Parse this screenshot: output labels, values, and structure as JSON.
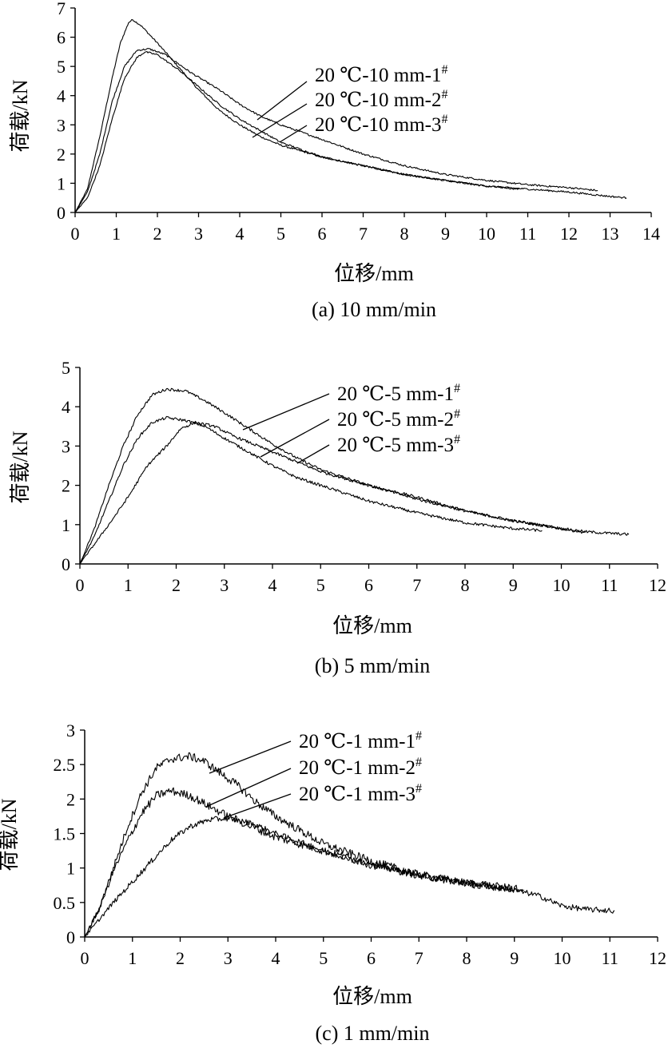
{
  "chart_data": [
    {
      "type": "line",
      "caption": "(a) 10 mm/min",
      "xlabel": "位移/mm",
      "ylabel": "荷载/kN",
      "xlim": [
        0,
        14
      ],
      "ylim": [
        0,
        7
      ],
      "xticks": [
        "0",
        "1",
        "2",
        "3",
        "4",
        "5",
        "6",
        "7",
        "8",
        "9",
        "10",
        "11",
        "12",
        "13",
        "14"
      ],
      "yticks": [
        "0",
        "1",
        "2",
        "3",
        "4",
        "5",
        "6",
        "7"
      ],
      "series": [
        {
          "name": "20 ℃-10 mm-1",
          "sup": "#",
          "noise": 0.03,
          "points": [
            [
              0,
              0
            ],
            [
              0.3,
              0.8
            ],
            [
              0.6,
              2.6
            ],
            [
              0.9,
              4.6
            ],
            [
              1.1,
              5.8
            ],
            [
              1.3,
              6.5
            ],
            [
              1.4,
              6.6
            ],
            [
              1.6,
              6.4
            ],
            [
              2,
              5.8
            ],
            [
              2.5,
              5.0
            ],
            [
              3,
              4.2
            ],
            [
              3.5,
              3.5
            ],
            [
              4,
              3.0
            ],
            [
              4.5,
              2.6
            ],
            [
              5,
              2.3
            ],
            [
              6,
              1.9
            ],
            [
              7,
              1.6
            ],
            [
              8,
              1.3
            ],
            [
              9,
              1.1
            ],
            [
              10,
              0.9
            ],
            [
              10.8,
              0.8
            ]
          ]
        },
        {
          "name": "20 ℃-10 mm-2",
          "sup": "#",
          "noise": 0.03,
          "points": [
            [
              0,
              0
            ],
            [
              0.3,
              0.7
            ],
            [
              0.6,
              2.0
            ],
            [
              0.9,
              3.8
            ],
            [
              1.2,
              5.0
            ],
            [
              1.5,
              5.55
            ],
            [
              1.8,
              5.6
            ],
            [
              2.2,
              5.4
            ],
            [
              2.8,
              4.8
            ],
            [
              3.5,
              4.2
            ],
            [
              4,
              3.7
            ],
            [
              4.5,
              3.3
            ],
            [
              5,
              3.0
            ],
            [
              6,
              2.5
            ],
            [
              7,
              2.0
            ],
            [
              8,
              1.6
            ],
            [
              9,
              1.3
            ],
            [
              10,
              1.1
            ],
            [
              11,
              0.95
            ],
            [
              12,
              0.85
            ],
            [
              12.7,
              0.75
            ]
          ]
        },
        {
          "name": "20 ℃-10 mm-3",
          "sup": "#",
          "noise": 0.03,
          "points": [
            [
              0,
              0
            ],
            [
              0.3,
              0.5
            ],
            [
              0.6,
              1.6
            ],
            [
              0.9,
              3.2
            ],
            [
              1.2,
              4.6
            ],
            [
              1.5,
              5.3
            ],
            [
              1.7,
              5.5
            ],
            [
              2,
              5.4
            ],
            [
              2.5,
              4.9
            ],
            [
              3,
              4.3
            ],
            [
              3.5,
              3.7
            ],
            [
              4,
              3.2
            ],
            [
              4.5,
              2.8
            ],
            [
              5,
              2.4
            ],
            [
              6,
              1.9
            ],
            [
              7,
              1.6
            ],
            [
              8,
              1.3
            ],
            [
              9,
              1.1
            ],
            [
              10,
              0.9
            ],
            [
              11,
              0.8
            ],
            [
              12,
              0.7
            ],
            [
              13,
              0.55
            ],
            [
              13.4,
              0.5
            ]
          ]
        }
      ]
    },
    {
      "type": "line",
      "caption": "(b) 5 mm/min",
      "xlabel": "位移/mm",
      "ylabel": "荷载/kN",
      "xlim": [
        0,
        12
      ],
      "ylim": [
        0,
        5
      ],
      "xticks": [
        "0",
        "1",
        "2",
        "3",
        "4",
        "5",
        "6",
        "7",
        "8",
        "9",
        "10",
        "11",
        "12"
      ],
      "yticks": [
        "0",
        "1",
        "2",
        "3",
        "4",
        "5"
      ],
      "series": [
        {
          "name": "20 ℃-5 mm-1",
          "sup": "#",
          "noise": 0.035,
          "points": [
            [
              0,
              0
            ],
            [
              0.3,
              0.9
            ],
            [
              0.6,
              2.0
            ],
            [
              0.9,
              3.0
            ],
            [
              1.2,
              3.8
            ],
            [
              1.5,
              4.3
            ],
            [
              1.8,
              4.45
            ],
            [
              2.2,
              4.4
            ],
            [
              2.6,
              4.15
            ],
            [
              3,
              3.85
            ],
            [
              3.5,
              3.45
            ],
            [
              4,
              3.05
            ],
            [
              4.5,
              2.7
            ],
            [
              5,
              2.4
            ],
            [
              6,
              2.0
            ],
            [
              7,
              1.7
            ],
            [
              8,
              1.35
            ],
            [
              9,
              1.1
            ],
            [
              10,
              0.9
            ],
            [
              10.5,
              0.8
            ]
          ]
        },
        {
          "name": "20 ℃-5 mm-2",
          "sup": "#",
          "noise": 0.035,
          "points": [
            [
              0,
              0
            ],
            [
              0.3,
              0.7
            ],
            [
              0.6,
              1.6
            ],
            [
              0.9,
              2.5
            ],
            [
              1.2,
              3.2
            ],
            [
              1.5,
              3.6
            ],
            [
              1.8,
              3.72
            ],
            [
              2.2,
              3.65
            ],
            [
              2.6,
              3.5
            ],
            [
              3,
              3.2
            ],
            [
              3.5,
              2.85
            ],
            [
              4,
              2.5
            ],
            [
              4.5,
              2.2
            ],
            [
              5,
              2.0
            ],
            [
              6,
              1.6
            ],
            [
              7,
              1.3
            ],
            [
              8,
              1.05
            ],
            [
              9,
              0.9
            ],
            [
              9.6,
              0.85
            ]
          ]
        },
        {
          "name": "20 ℃-5 mm-3",
          "sup": "#",
          "noise": 0.035,
          "points": [
            [
              0,
              0
            ],
            [
              0.3,
              0.5
            ],
            [
              0.6,
              1.0
            ],
            [
              1,
              1.7
            ],
            [
              1.4,
              2.5
            ],
            [
              1.8,
              3.0
            ],
            [
              2.1,
              3.45
            ],
            [
              2.4,
              3.6
            ],
            [
              2.8,
              3.5
            ],
            [
              3.2,
              3.25
            ],
            [
              3.6,
              3.05
            ],
            [
              4,
              2.85
            ],
            [
              4.5,
              2.6
            ],
            [
              5,
              2.35
            ],
            [
              6,
              2.0
            ],
            [
              7,
              1.65
            ],
            [
              8,
              1.35
            ],
            [
              9,
              1.1
            ],
            [
              10,
              0.9
            ],
            [
              10.5,
              0.82
            ],
            [
              11,
              0.78
            ],
            [
              11.4,
              0.75
            ]
          ]
        }
      ]
    },
    {
      "type": "line",
      "caption": "(c) 1 mm/min",
      "xlabel": "位移/mm",
      "ylabel": "荷载/kN",
      "xlim": [
        0,
        12
      ],
      "ylim": [
        0,
        3
      ],
      "xticks": [
        "0",
        "1",
        "2",
        "3",
        "4",
        "5",
        "6",
        "7",
        "8",
        "9",
        "10",
        "11",
        "12"
      ],
      "yticks": [
        "0",
        "0.5",
        "1",
        "1.5",
        "2",
        "2.5",
        "3"
      ],
      "series": [
        {
          "name": "20 ℃-1 mm-1",
          "sup": "#",
          "noise": 0.06,
          "points": [
            [
              0,
              0
            ],
            [
              0.3,
              0.4
            ],
            [
              0.6,
              1.0
            ],
            [
              0.9,
              1.6
            ],
            [
              1.2,
              2.1
            ],
            [
              1.5,
              2.45
            ],
            [
              1.8,
              2.58
            ],
            [
              2.2,
              2.62
            ],
            [
              2.5,
              2.55
            ],
            [
              2.8,
              2.4
            ],
            [
              3.2,
              2.2
            ],
            [
              3.6,
              1.95
            ],
            [
              4,
              1.75
            ],
            [
              4.5,
              1.55
            ],
            [
              5,
              1.35
            ],
            [
              6,
              1.1
            ],
            [
              7,
              0.9
            ],
            [
              8,
              0.78
            ],
            [
              9,
              0.7
            ]
          ]
        },
        {
          "name": "20 ℃-1 mm-2",
          "sup": "#",
          "noise": 0.06,
          "points": [
            [
              0,
              0
            ],
            [
              0.3,
              0.4
            ],
            [
              0.6,
              0.95
            ],
            [
              0.9,
              1.4
            ],
            [
              1.2,
              1.8
            ],
            [
              1.5,
              2.05
            ],
            [
              1.8,
              2.12
            ],
            [
              2.2,
              2.05
            ],
            [
              2.6,
              1.9
            ],
            [
              3,
              1.75
            ],
            [
              3.5,
              1.6
            ],
            [
              4,
              1.45
            ],
            [
              4.5,
              1.35
            ],
            [
              5,
              1.25
            ],
            [
              6,
              1.05
            ],
            [
              7,
              0.9
            ],
            [
              8,
              0.78
            ],
            [
              9,
              0.7
            ],
            [
              9.2,
              0.68
            ]
          ]
        },
        {
          "name": "20 ℃-1 mm-3",
          "sup": "#",
          "noise": 0.04,
          "points": [
            [
              0,
              0
            ],
            [
              0.3,
              0.25
            ],
            [
              0.6,
              0.5
            ],
            [
              1,
              0.8
            ],
            [
              1.4,
              1.1
            ],
            [
              1.8,
              1.4
            ],
            [
              2.2,
              1.6
            ],
            [
              2.6,
              1.7
            ],
            [
              3,
              1.72
            ],
            [
              3.5,
              1.65
            ],
            [
              4,
              1.5
            ],
            [
              4.5,
              1.38
            ],
            [
              5,
              1.25
            ],
            [
              6,
              1.05
            ],
            [
              7,
              0.9
            ],
            [
              8,
              0.78
            ],
            [
              9,
              0.68
            ],
            [
              9.5,
              0.6
            ],
            [
              10,
              0.45
            ],
            [
              10.5,
              0.4
            ],
            [
              11.1,
              0.38
            ]
          ]
        }
      ]
    }
  ]
}
